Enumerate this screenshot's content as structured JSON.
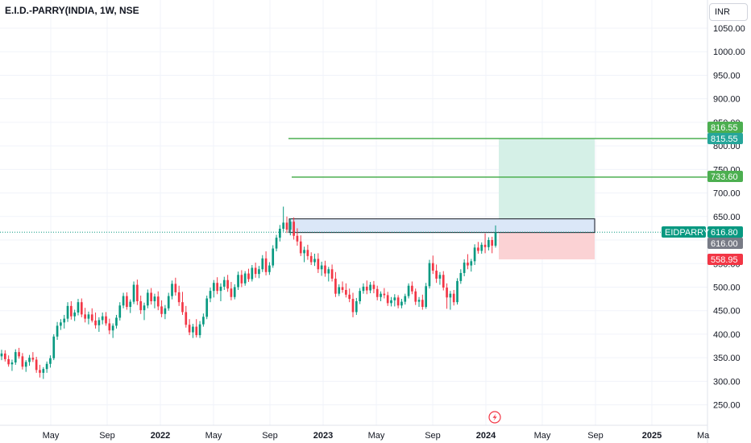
{
  "header": {
    "title": "E.I.D.-PARRY(INDIA, 1W, NSE",
    "currency": "INR"
  },
  "chart_data": {
    "type": "candlestick",
    "symbol": "EIDPARRY",
    "y_ticks": [
      "1050.00",
      "1000.00",
      "950.00",
      "900.00",
      "850.00",
      "800.00",
      "750.00",
      "700.00",
      "650.00",
      "600.00",
      "550.00",
      "500.00",
      "450.00",
      "400.00",
      "350.00",
      "300.00",
      "250.00"
    ],
    "x_ticks": [
      {
        "label": "May",
        "bold": false
      },
      {
        "label": "Sep",
        "bold": false
      },
      {
        "label": "2022",
        "bold": true
      },
      {
        "label": "May",
        "bold": false
      },
      {
        "label": "Sep",
        "bold": false
      },
      {
        "label": "2023",
        "bold": true
      },
      {
        "label": "May",
        "bold": false
      },
      {
        "label": "Sep",
        "bold": false
      },
      {
        "label": "2024",
        "bold": true
      },
      {
        "label": "May",
        "bold": false
      },
      {
        "label": "Sep",
        "bold": false
      },
      {
        "label": "2025",
        "bold": true
      },
      {
        "label": "Ma",
        "bold": false
      }
    ],
    "ylim": [
      205,
      1085
    ],
    "price_labels": [
      {
        "text": "816.55",
        "value": 816.55,
        "color": "#4caf50"
      },
      {
        "text": "815.55",
        "value": 815.55,
        "color": "#26a69a"
      },
      {
        "text": "733.60",
        "value": 733.6,
        "color": "#4caf50"
      },
      {
        "text": "616.80",
        "value": 616.8,
        "color": "#089981"
      },
      {
        "text": "616.00",
        "value": 616.0,
        "color": "#787b86"
      },
      {
        "text": "558.95",
        "value": 558.95,
        "color": "#f23645"
      }
    ],
    "symbol_badge": {
      "text": "EIDPARRY",
      "color": "#089981"
    },
    "horizontal_lines": [
      {
        "value": 815.55,
        "color": "#4caf50"
      },
      {
        "value": 733.6,
        "color": "#4caf50"
      }
    ],
    "current_price_line": {
      "value": 616.8,
      "color": "#089981"
    },
    "zone": {
      "top": 645,
      "bottom": 616,
      "color": "#dbe7f8",
      "border": "#131722"
    },
    "trade": {
      "entry": 616.8,
      "target": 816.55,
      "stop": 558.95,
      "profit_color": "#d5f0e7",
      "loss_color": "#fbd2d4"
    },
    "candles": [
      [
        353,
        367,
        345,
        359
      ],
      [
        359,
        366,
        342,
        347
      ],
      [
        347,
        355,
        331,
        336
      ],
      [
        336,
        346,
        322,
        340
      ],
      [
        340,
        368,
        335,
        362
      ],
      [
        362,
        371,
        348,
        353
      ],
      [
        353,
        360,
        325,
        331
      ],
      [
        331,
        345,
        320,
        341
      ],
      [
        341,
        356,
        333,
        350
      ],
      [
        350,
        362,
        341,
        346
      ],
      [
        346,
        352,
        318,
        324
      ],
      [
        324,
        335,
        308,
        318
      ],
      [
        318,
        330,
        305,
        326
      ],
      [
        326,
        342,
        318,
        337
      ],
      [
        337,
        355,
        329,
        349
      ],
      [
        349,
        400,
        345,
        395
      ],
      [
        395,
        426,
        388,
        418
      ],
      [
        418,
        432,
        409,
        425
      ],
      [
        425,
        441,
        412,
        433
      ],
      [
        433,
        468,
        426,
        460
      ],
      [
        460,
        470,
        431,
        438
      ],
      [
        438,
        452,
        428,
        446
      ],
      [
        446,
        475,
        440,
        468
      ],
      [
        468,
        476,
        436,
        442
      ],
      [
        442,
        456,
        425,
        433
      ],
      [
        433,
        448,
        421,
        442
      ],
      [
        442,
        455,
        425,
        429
      ],
      [
        429,
        446,
        412,
        419
      ],
      [
        419,
        436,
        405,
        430
      ],
      [
        430,
        446,
        421,
        438
      ],
      [
        438,
        447,
        418,
        423
      ],
      [
        423,
        433,
        400,
        408
      ],
      [
        408,
        423,
        392,
        418
      ],
      [
        418,
        441,
        412,
        435
      ],
      [
        435,
        468,
        429,
        461
      ],
      [
        461,
        488,
        455,
        481
      ],
      [
        481,
        489,
        452,
        458
      ],
      [
        458,
        474,
        445,
        469
      ],
      [
        469,
        512,
        464,
        505
      ],
      [
        505,
        516,
        462,
        470
      ],
      [
        470,
        482,
        443,
        451
      ],
      [
        451,
        467,
        430,
        461
      ],
      [
        461,
        495,
        455,
        488
      ],
      [
        488,
        498,
        463,
        470
      ],
      [
        470,
        486,
        455,
        480
      ],
      [
        480,
        491,
        451,
        459
      ],
      [
        459,
        472,
        436,
        443
      ],
      [
        443,
        462,
        432,
        455
      ],
      [
        455,
        488,
        450,
        481
      ],
      [
        481,
        514,
        474,
        507
      ],
      [
        507,
        520,
        482,
        489
      ],
      [
        489,
        503,
        460,
        468
      ],
      [
        468,
        490,
        441,
        447
      ],
      [
        447,
        460,
        414,
        420
      ],
      [
        420,
        432,
        398,
        404
      ],
      [
        404,
        422,
        392,
        416
      ],
      [
        416,
        432,
        393,
        398
      ],
      [
        398,
        428,
        392,
        421
      ],
      [
        421,
        444,
        416,
        437
      ],
      [
        437,
        482,
        432,
        476
      ],
      [
        476,
        499,
        468,
        492
      ],
      [
        492,
        515,
        478,
        509
      ],
      [
        509,
        521,
        485,
        492
      ],
      [
        492,
        508,
        470,
        501
      ],
      [
        501,
        522,
        494,
        515
      ],
      [
        515,
        526,
        490,
        497
      ],
      [
        497,
        511,
        472,
        479
      ],
      [
        479,
        506,
        474,
        500
      ],
      [
        500,
        533,
        494,
        526
      ],
      [
        526,
        536,
        500,
        508
      ],
      [
        508,
        534,
        503,
        529
      ],
      [
        529,
        539,
        511,
        517
      ],
      [
        517,
        547,
        512,
        541
      ],
      [
        541,
        552,
        520,
        528
      ],
      [
        528,
        545,
        519,
        538
      ],
      [
        538,
        568,
        532,
        561
      ],
      [
        561,
        576,
        525,
        532
      ],
      [
        532,
        553,
        526,
        546
      ],
      [
        546,
        589,
        541,
        582
      ],
      [
        582,
        611,
        576,
        605
      ],
      [
        605,
        632,
        597,
        624
      ],
      [
        624,
        671,
        618,
        637
      ],
      [
        637,
        650,
        615,
        622
      ],
      [
        622,
        646,
        610,
        639
      ],
      [
        639,
        648,
        601,
        609
      ],
      [
        609,
        625,
        588,
        597
      ],
      [
        597,
        610,
        566,
        572
      ],
      [
        572,
        586,
        553,
        579
      ],
      [
        579,
        590,
        558,
        566
      ],
      [
        566,
        574,
        547,
        553
      ],
      [
        553,
        571,
        545,
        560
      ],
      [
        560,
        572,
        530,
        538
      ],
      [
        538,
        554,
        524,
        546
      ],
      [
        546,
        556,
        522,
        529
      ],
      [
        529,
        543,
        512,
        538
      ],
      [
        538,
        548,
        512,
        518
      ],
      [
        518,
        532,
        479,
        486
      ],
      [
        486,
        506,
        481,
        500
      ],
      [
        500,
        512,
        488,
        494
      ],
      [
        494,
        508,
        478,
        484
      ],
      [
        484,
        497,
        468,
        475
      ],
      [
        475,
        488,
        436,
        447
      ],
      [
        447,
        477,
        441,
        470
      ],
      [
        470,
        498,
        464,
        492
      ],
      [
        492,
        508,
        486,
        501
      ],
      [
        501,
        514,
        485,
        493
      ],
      [
        493,
        511,
        487,
        505
      ],
      [
        505,
        513,
        487,
        496
      ],
      [
        496,
        503,
        472,
        479
      ],
      [
        479,
        491,
        470,
        486
      ],
      [
        486,
        498,
        476,
        483
      ],
      [
        483,
        490,
        460,
        466
      ],
      [
        466,
        479,
        459,
        472
      ],
      [
        472,
        485,
        459,
        478
      ],
      [
        478,
        483,
        455,
        461
      ],
      [
        461,
        475,
        455,
        469
      ],
      [
        469,
        486,
        463,
        481
      ],
      [
        481,
        508,
        476,
        503
      ],
      [
        503,
        512,
        485,
        491
      ],
      [
        491,
        497,
        462,
        469
      ],
      [
        469,
        479,
        458,
        473
      ],
      [
        473,
        484,
        452,
        458
      ],
      [
        458,
        509,
        454,
        502
      ],
      [
        502,
        558,
        497,
        551
      ],
      [
        551,
        567,
        528,
        535
      ],
      [
        535,
        548,
        509,
        518
      ],
      [
        518,
        532,
        505,
        526
      ],
      [
        526,
        534,
        493,
        499
      ],
      [
        499,
        508,
        454,
        478
      ],
      [
        478,
        492,
        452,
        486
      ],
      [
        486,
        494,
        461,
        468
      ],
      [
        468,
        519,
        463,
        513
      ],
      [
        513,
        538,
        507,
        530
      ],
      [
        530,
        559,
        523,
        552
      ],
      [
        552,
        570,
        538,
        546
      ],
      [
        546,
        560,
        533,
        555
      ],
      [
        555,
        591,
        547,
        584
      ],
      [
        584,
        596,
        571,
        577
      ],
      [
        577,
        595,
        571,
        590
      ],
      [
        590,
        614,
        572,
        585
      ],
      [
        585,
        606,
        578,
        600
      ],
      [
        600,
        607,
        572,
        588
      ],
      [
        588,
        631,
        584,
        616
      ]
    ]
  }
}
